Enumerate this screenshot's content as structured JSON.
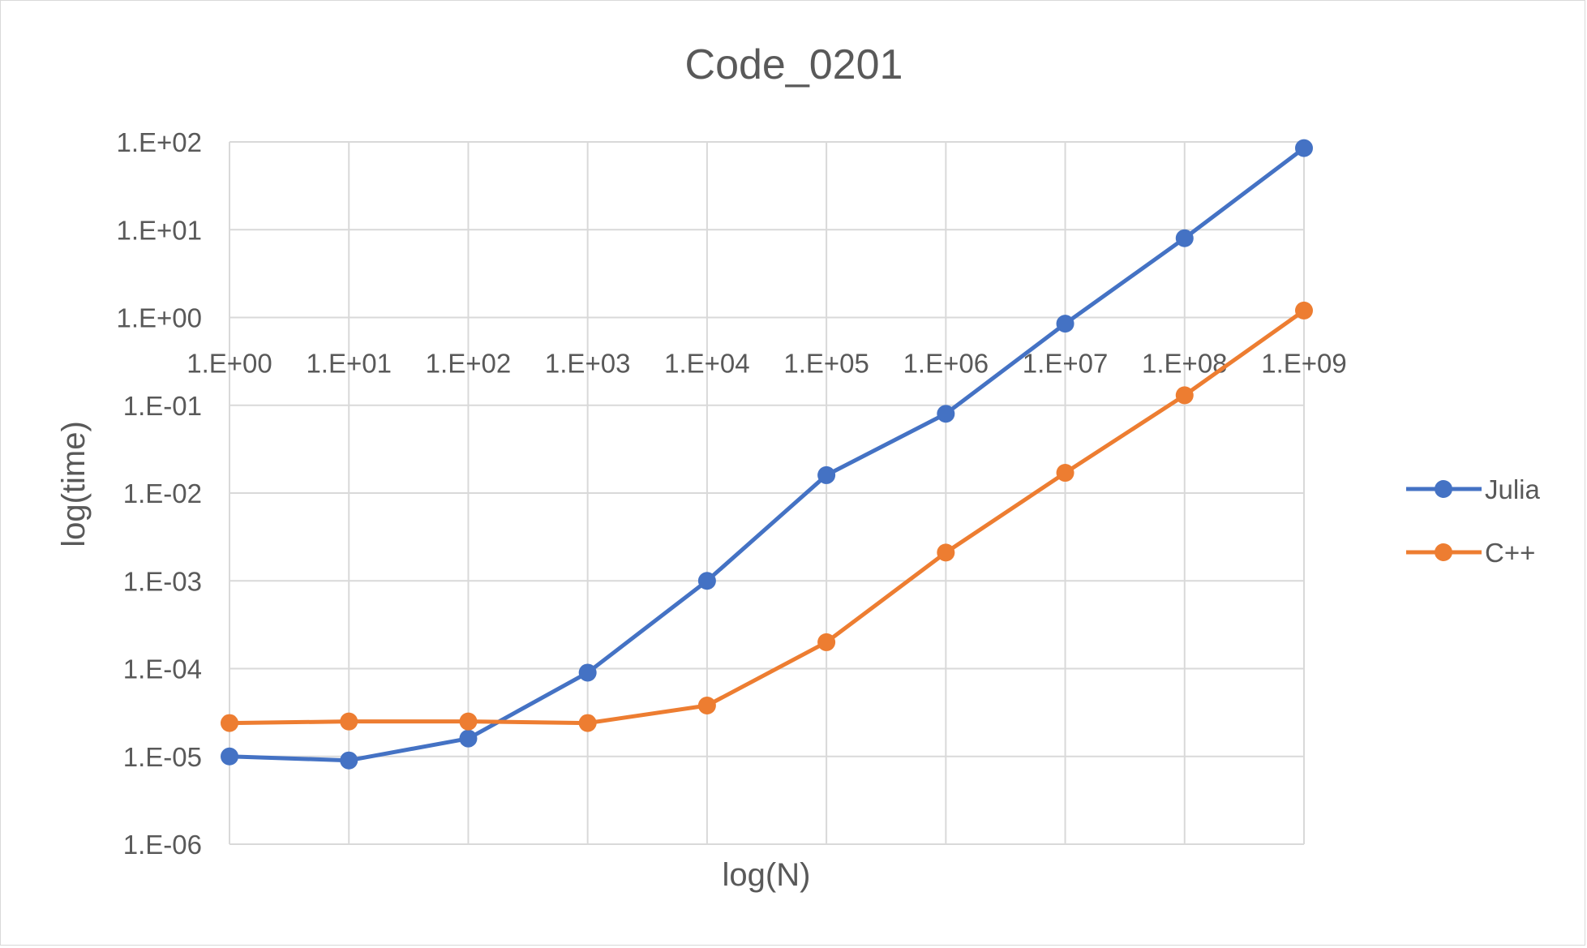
{
  "chart_data": {
    "type": "line",
    "title": "Code_0201",
    "xlabel": "log(N)",
    "ylabel": "log(time)",
    "x_scale": "log",
    "y_scale": "log",
    "x": [
      1,
      10,
      100,
      1000,
      10000,
      100000,
      1000000,
      10000000,
      100000000,
      1000000000
    ],
    "x_tick_labels": [
      "1.E+00",
      "1.E+01",
      "1.E+02",
      "1.E+03",
      "1.E+04",
      "1.E+05",
      "1.E+06",
      "1.E+07",
      "1.E+08",
      "1.E+09"
    ],
    "y_ticks": [
      1e-06,
      1e-05,
      0.0001,
      0.001,
      0.01,
      0.1,
      1,
      10,
      100
    ],
    "y_tick_labels": [
      "1.E-06",
      "1.E-05",
      "1.E-04",
      "1.E-03",
      "1.E-02",
      "1.E-01",
      "1.E+00",
      "1.E+01",
      "1.E+02"
    ],
    "ylim": [
      1e-06,
      100
    ],
    "grid": true,
    "legend_position": "right",
    "series": [
      {
        "name": "Julia",
        "color": "#4472c4",
        "values": [
          1e-05,
          9e-06,
          1.6e-05,
          9e-05,
          0.001,
          0.016,
          0.08,
          0.85,
          8,
          85
        ]
      },
      {
        "name": "C++",
        "color": "#ed7d31",
        "values": [
          2.4e-05,
          2.5e-05,
          2.5e-05,
          2.4e-05,
          3.8e-05,
          0.0002,
          0.0021,
          0.017,
          0.13,
          1.2
        ]
      }
    ]
  }
}
